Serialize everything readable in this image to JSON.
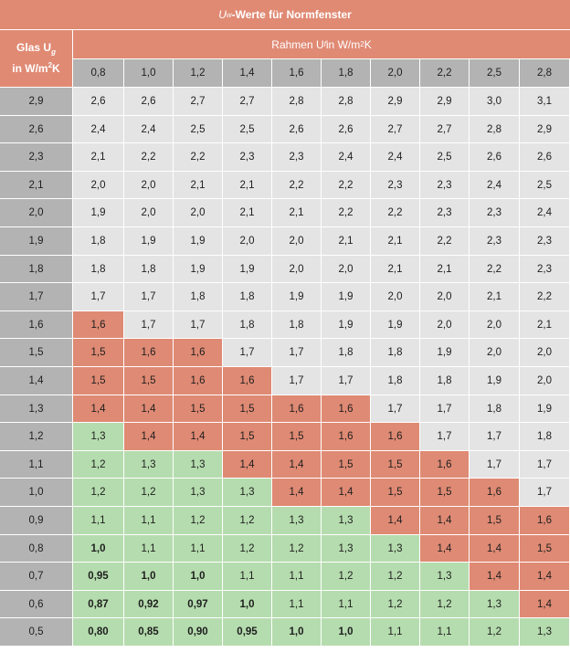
{
  "title_prefix": "U",
  "title_sub": "w",
  "title_suffix": "-Werte für Normfenster",
  "glas_line1_prefix": "Glas U",
  "glas_line1_sub": "g",
  "glas_line2_prefix": "in W/m",
  "glas_line2_sup": "2",
  "glas_line2_suffix": "K",
  "rahmen_prefix": "Rahmen U",
  "rahmen_sub": "f",
  "rahmen_mid": " in W/m",
  "rahmen_sup": "2",
  "rahmen_suffix": "K",
  "colors": {
    "header": "#e08a74",
    "grey_head": "#b3b3b3",
    "grey_value": "#e4e4e4",
    "red_value": "#df8a74",
    "green_value": "#b5dcae"
  },
  "uf_values": [
    "0,8",
    "1,0",
    "1,2",
    "1,4",
    "1,6",
    "1,8",
    "2,0",
    "2,2",
    "2,5",
    "2,8"
  ],
  "rows": [
    {
      "ug": "2,9",
      "v": [
        "2,6",
        "2,6",
        "2,7",
        "2,7",
        "2,8",
        "2,8",
        "2,9",
        "2,9",
        "3,0",
        "3,1"
      ],
      "c": "gggggggggg",
      "b": ""
    },
    {
      "ug": "2,6",
      "v": [
        "2,4",
        "2,4",
        "2,5",
        "2,5",
        "2,6",
        "2,6",
        "2,7",
        "2,7",
        "2,8",
        "2,9"
      ],
      "c": "gggggggggg",
      "b": ""
    },
    {
      "ug": "2,3",
      "v": [
        "2,1",
        "2,2",
        "2,2",
        "2,3",
        "2,3",
        "2,4",
        "2,4",
        "2,5",
        "2,6",
        "2,6"
      ],
      "c": "gggggggggg",
      "b": ""
    },
    {
      "ug": "2,1",
      "v": [
        "2,0",
        "2,0",
        "2,1",
        "2,1",
        "2,2",
        "2,2",
        "2,3",
        "2,3",
        "2,4",
        "2,5"
      ],
      "c": "gggggggggg",
      "b": ""
    },
    {
      "ug": "2,0",
      "v": [
        "1,9",
        "2,0",
        "2,0",
        "2,1",
        "2,1",
        "2,2",
        "2,2",
        "2,3",
        "2,3",
        "2,4"
      ],
      "c": "gggggggggg",
      "b": ""
    },
    {
      "ug": "1,9",
      "v": [
        "1,8",
        "1,9",
        "1,9",
        "2,0",
        "2,0",
        "2,1",
        "2,1",
        "2,2",
        "2,3",
        "2,3"
      ],
      "c": "gggggggggg",
      "b": ""
    },
    {
      "ug": "1,8",
      "v": [
        "1,8",
        "1,8",
        "1,9",
        "1,9",
        "2,0",
        "2,0",
        "2,1",
        "2,1",
        "2,2",
        "2,3"
      ],
      "c": "gggggggggg",
      "b": ""
    },
    {
      "ug": "1,7",
      "v": [
        "1,7",
        "1,7",
        "1,8",
        "1,8",
        "1,9",
        "1,9",
        "2,0",
        "2,0",
        "2,1",
        "2,2"
      ],
      "c": "gggggggggg",
      "b": ""
    },
    {
      "ug": "1,6",
      "v": [
        "1,6",
        "1,7",
        "1,7",
        "1,8",
        "1,8",
        "1,9",
        "1,9",
        "2,0",
        "2,0",
        "2,1"
      ],
      "c": "rggggggggg",
      "b": ""
    },
    {
      "ug": "1,5",
      "v": [
        "1,5",
        "1,6",
        "1,6",
        "1,7",
        "1,7",
        "1,8",
        "1,8",
        "1,9",
        "2,0",
        "2,0"
      ],
      "c": "rrrggggggg",
      "b": ""
    },
    {
      "ug": "1,4",
      "v": [
        "1,5",
        "1,5",
        "1,6",
        "1,6",
        "1,7",
        "1,7",
        "1,8",
        "1,8",
        "1,9",
        "2,0"
      ],
      "c": "rrrrgggggg",
      "b": ""
    },
    {
      "ug": "1,3",
      "v": [
        "1,4",
        "1,4",
        "1,5",
        "1,5",
        "1,6",
        "1,6",
        "1,7",
        "1,7",
        "1,8",
        "1,9"
      ],
      "c": "rrrrrrgggg",
      "b": ""
    },
    {
      "ug": "1,2",
      "v": [
        "1,3",
        "1,4",
        "1,4",
        "1,5",
        "1,5",
        "1,6",
        "1,6",
        "1,7",
        "1,7",
        "1,8"
      ],
      "c": "Grrrrrrggg",
      "b": ""
    },
    {
      "ug": "1,1",
      "v": [
        "1,2",
        "1,3",
        "1,3",
        "1,4",
        "1,4",
        "1,5",
        "1,5",
        "1,6",
        "1,7",
        "1,7"
      ],
      "c": "GGGrrrrrgg",
      "b": ""
    },
    {
      "ug": "1,0",
      "v": [
        "1,2",
        "1,2",
        "1,3",
        "1,3",
        "1,4",
        "1,4",
        "1,5",
        "1,5",
        "1,6",
        "1,7"
      ],
      "c": "GGGGrrrrrg",
      "b": ""
    },
    {
      "ug": "0,9",
      "v": [
        "1,1",
        "1,1",
        "1,2",
        "1,2",
        "1,3",
        "1,3",
        "1,4",
        "1,4",
        "1,5",
        "1,6"
      ],
      "c": "GGGGGGrrrr",
      "b": ""
    },
    {
      "ug": "0,8",
      "v": [
        "1,0",
        "1,1",
        "1,1",
        "1,2",
        "1,2",
        "1,3",
        "1,3",
        "1,4",
        "1,4",
        "1,5"
      ],
      "c": "GGGGGGGrrr",
      "b": "1"
    },
    {
      "ug": "0,7",
      "v": [
        "0,95",
        "1,0",
        "1,0",
        "1,1",
        "1,1",
        "1,2",
        "1,2",
        "1,3",
        "1,4",
        "1,4"
      ],
      "c": "GGGGGGGGrr",
      "b": "111"
    },
    {
      "ug": "0,6",
      "v": [
        "0,87",
        "0,92",
        "0,97",
        "1,0",
        "1,1",
        "1,1",
        "1,2",
        "1,2",
        "1,3",
        "1,4"
      ],
      "c": "GGGGGGGGGr",
      "b": "1111"
    },
    {
      "ug": "0,5",
      "v": [
        "0,80",
        "0,85",
        "0,90",
        "0,95",
        "1,0",
        "1,0",
        "1,1",
        "1,1",
        "1,2",
        "1,3"
      ],
      "c": "GGGGGGGGGG",
      "b": "111111"
    }
  ]
}
